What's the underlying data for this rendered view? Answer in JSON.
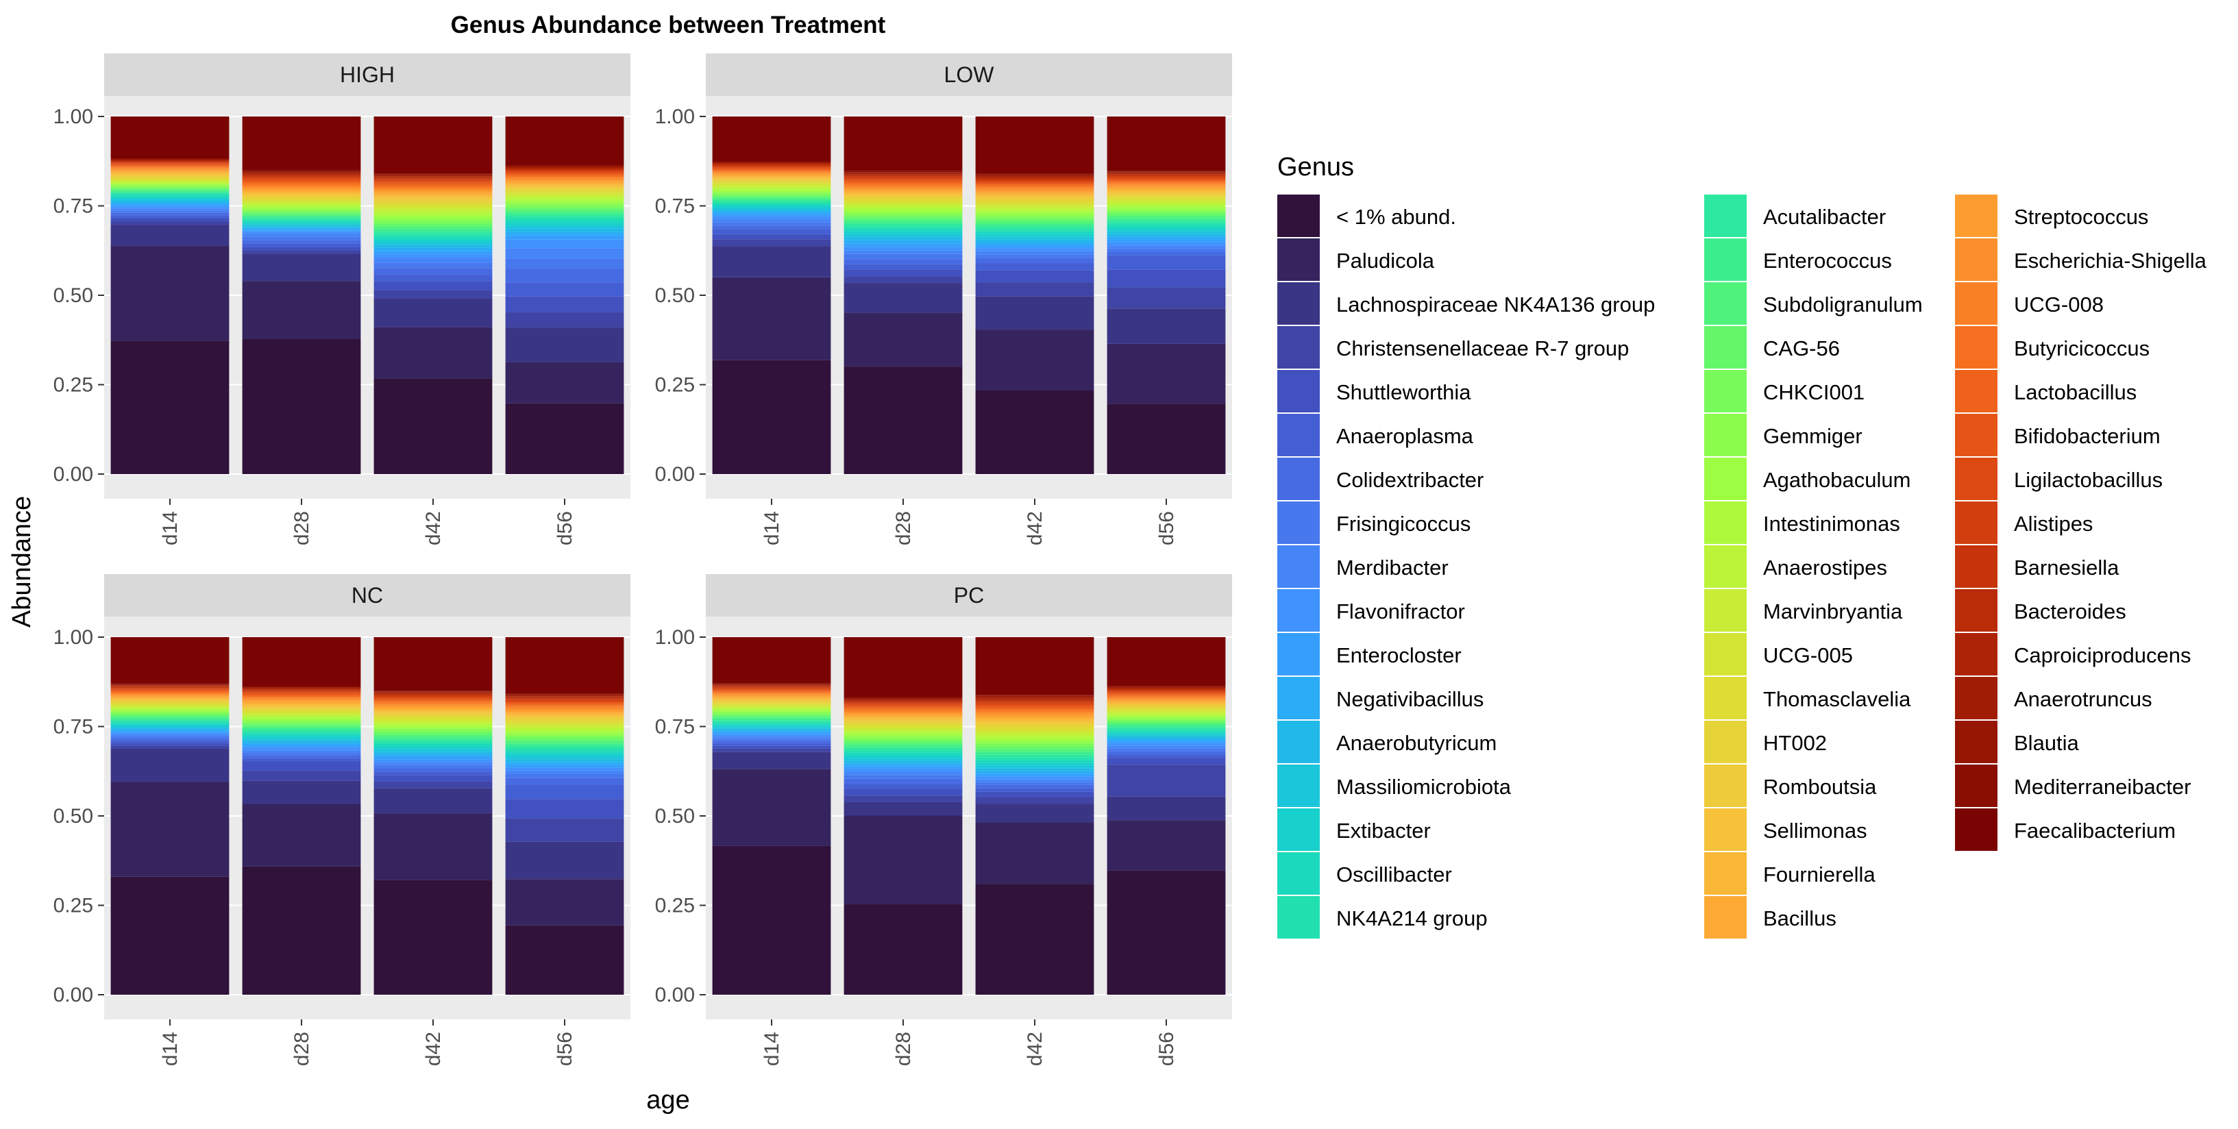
{
  "chart_data": {
    "type": "bar",
    "stacked": true,
    "title": "Genus Abundance between Treatment",
    "xlabel": "age",
    "ylabel": "Abundance",
    "ylim": [
      0,
      1
    ],
    "yticks": [
      "0.00",
      "0.25",
      "0.50",
      "0.75",
      "1.00"
    ],
    "categories": [
      "d14",
      "d28",
      "d42",
      "d56"
    ],
    "legend_title": "Genus",
    "legend_position": "right",
    "genera": [
      {
        "name": "< 1% abund.",
        "color": "#30123b"
      },
      {
        "name": "Paludicola",
        "color": "#35245e"
      },
      {
        "name": "Lachnospiraceae NK4A136 group",
        "color": "#3b3586"
      },
      {
        "name": "Christensenellaceae R-7 group",
        "color": "#3f44a5"
      },
      {
        "name": "Shuttleworthia",
        "color": "#4151bf"
      },
      {
        "name": "Anaeroplasma",
        "color": "#445ed4"
      },
      {
        "name": "Colidextribacter",
        "color": "#466be2"
      },
      {
        "name": "Frisingicoccus",
        "color": "#4778ee"
      },
      {
        "name": "Merdibacter",
        "color": "#4585f8"
      },
      {
        "name": "Flavonifractor",
        "color": "#4092fe"
      },
      {
        "name": "Enterocloster",
        "color": "#369ffe"
      },
      {
        "name": "Negativibacillus",
        "color": "#2aacf6"
      },
      {
        "name": "Anaerobutyricum",
        "color": "#21b9e8"
      },
      {
        "name": "Massiliomicrobiota",
        "color": "#1bc6da"
      },
      {
        "name": "Extibacter",
        "color": "#18d0cc"
      },
      {
        "name": "Oscillibacter",
        "color": "#1bd9bd"
      },
      {
        "name": "NK4A214 group",
        "color": "#22e0ae"
      },
      {
        "name": "Acutalibacter",
        "color": "#2de89e"
      },
      {
        "name": "Enterococcus",
        "color": "#3ced8e"
      },
      {
        "name": "Subdoligranulum",
        "color": "#4ff37c"
      },
      {
        "name": "CAG-56",
        "color": "#64f76a"
      },
      {
        "name": "CHKCI001",
        "color": "#78fa5a"
      },
      {
        "name": "Gemmiger",
        "color": "#8cfc4c"
      },
      {
        "name": "Agathobaculum",
        "color": "#9dfd42"
      },
      {
        "name": "Intestinimonas",
        "color": "#adfa3c"
      },
      {
        "name": "Anaerostipes",
        "color": "#bcf439"
      },
      {
        "name": "Marvinbryantia",
        "color": "#c9ec36"
      },
      {
        "name": "UCG-005",
        "color": "#d3e435"
      },
      {
        "name": "Thomasclavelia",
        "color": "#dedc35"
      },
      {
        "name": "HT002",
        "color": "#e6d337"
      },
      {
        "name": "Romboutsia",
        "color": "#eecb3a"
      },
      {
        "name": "Sellimonas",
        "color": "#f5c23a"
      },
      {
        "name": "Fournierella",
        "color": "#f9b738"
      },
      {
        "name": "Bacillus",
        "color": "#fcaa35"
      },
      {
        "name": "Streptococcus",
        "color": "#fd9d30"
      },
      {
        "name": "Escherichia-Shigella",
        "color": "#fc8f2b"
      },
      {
        "name": "UCG-008",
        "color": "#fa8026"
      },
      {
        "name": "Butyricicoccus",
        "color": "#f57121"
      },
      {
        "name": "Lactobacillus",
        "color": "#ee621b"
      },
      {
        "name": "Bifidobacterium",
        "color": "#e65516"
      },
      {
        "name": "Ligilactobacillus",
        "color": "#dd4912"
      },
      {
        "name": "Alistipes",
        "color": "#d23e0e"
      },
      {
        "name": "Barnesiella",
        "color": "#c6340b"
      },
      {
        "name": "Bacteroides",
        "color": "#ba2b08"
      },
      {
        "name": "Caproiciproducens",
        "color": "#ad2306"
      },
      {
        "name": "Anaerotruncus",
        "color": "#a11c04"
      },
      {
        "name": "Blautia",
        "color": "#961503"
      },
      {
        "name": "Mediterraneibacter",
        "color": "#8a0f02"
      },
      {
        "name": "Faecalibacterium",
        "color": "#7a0403"
      }
    ],
    "panels": [
      {
        "name": "HIGH",
        "bars": {
          "d14": [
            0.383,
            0.272,
            0.061,
            0.01,
            0.01,
            0.007,
            0.007,
            0.006,
            0.006,
            0.006,
            0.006,
            0.006,
            0.005,
            0.005,
            0.005,
            0.005,
            0.005,
            0.004,
            0.004,
            0.004,
            0.004,
            0.004,
            0.004,
            0.003,
            0.003,
            0.003,
            0.004,
            0.004,
            0.004,
            0.004,
            0.004,
            0.004,
            0.004,
            0.004,
            0.004,
            0.004,
            0.003,
            0.003,
            0.003,
            0.003,
            0.003,
            0.002,
            0.002,
            0.002,
            0.002,
            0.002,
            0.002,
            0.002,
            0.12
          ],
          "d28": [
            0.393,
            0.168,
            0.079,
            0.01,
            0.01,
            0.01,
            0.01,
            0.01,
            0.01,
            0.005,
            0.005,
            0.005,
            0.005,
            0.005,
            0.005,
            0.005,
            0.005,
            0.005,
            0.005,
            0.005,
            0.005,
            0.005,
            0.005,
            0.005,
            0.005,
            0.005,
            0.005,
            0.005,
            0.005,
            0.005,
            0.005,
            0.005,
            0.005,
            0.005,
            0.005,
            0.005,
            0.005,
            0.005,
            0.005,
            0.005,
            0.004,
            0.004,
            0.004,
            0.003,
            0.003,
            0.003,
            0.003,
            0.003,
            0.157
          ],
          "d42": [
            0.285,
            0.152,
            0.086,
            0.025,
            0.025,
            0.02,
            0.02,
            0.015,
            0.015,
            0.01,
            0.01,
            0.01,
            0.008,
            0.008,
            0.008,
            0.008,
            0.008,
            0.008,
            0.008,
            0.008,
            0.008,
            0.008,
            0.008,
            0.008,
            0.008,
            0.008,
            0.007,
            0.007,
            0.007,
            0.007,
            0.006,
            0.006,
            0.006,
            0.006,
            0.006,
            0.005,
            0.005,
            0.005,
            0.005,
            0.005,
            0.004,
            0.004,
            0.004,
            0.003,
            0.003,
            0.003,
            0.003,
            0.002,
            0.17
          ],
          "d56": [
            0.205,
            0.12,
            0.1,
            0.045,
            0.045,
            0.04,
            0.04,
            0.03,
            0.03,
            0.025,
            0.012,
            0.01,
            0.01,
            0.008,
            0.008,
            0.008,
            0.008,
            0.007,
            0.007,
            0.007,
            0.007,
            0.007,
            0.007,
            0.006,
            0.006,
            0.006,
            0.006,
            0.006,
            0.006,
            0.005,
            0.005,
            0.005,
            0.005,
            0.005,
            0.005,
            0.005,
            0.004,
            0.004,
            0.004,
            0.004,
            0.004,
            0.003,
            0.003,
            0.003,
            0.003,
            0.002,
            0.002,
            0.002,
            0.142
          ]
        }
      },
      {
        "name": "LOW",
        "bars": {
          "d14": [
            0.33,
            0.24,
            0.09,
            0.02,
            0.015,
            0.015,
            0.01,
            0.01,
            0.01,
            0.008,
            0.006,
            0.006,
            0.006,
            0.006,
            0.005,
            0.005,
            0.005,
            0.005,
            0.005,
            0.005,
            0.005,
            0.005,
            0.005,
            0.005,
            0.005,
            0.005,
            0.005,
            0.005,
            0.004,
            0.004,
            0.004,
            0.004,
            0.004,
            0.004,
            0.004,
            0.004,
            0.003,
            0.003,
            0.003,
            0.003,
            0.003,
            0.003,
            0.003,
            0.003,
            0.002,
            0.002,
            0.002,
            0.002,
            0.13
          ],
          "d28": [
            0.315,
            0.158,
            0.087,
            0.02,
            0.02,
            0.015,
            0.015,
            0.015,
            0.01,
            0.01,
            0.01,
            0.01,
            0.01,
            0.008,
            0.008,
            0.008,
            0.007,
            0.007,
            0.007,
            0.007,
            0.007,
            0.007,
            0.007,
            0.006,
            0.006,
            0.006,
            0.006,
            0.006,
            0.006,
            0.006,
            0.006,
            0.005,
            0.005,
            0.005,
            0.005,
            0.005,
            0.005,
            0.005,
            0.005,
            0.005,
            0.004,
            0.004,
            0.004,
            0.003,
            0.003,
            0.003,
            0.003,
            0.003,
            0.16
          ],
          "d42": [
            0.24,
            0.175,
            0.095,
            0.04,
            0.035,
            0.02,
            0.015,
            0.01,
            0.01,
            0.009,
            0.009,
            0.008,
            0.008,
            0.008,
            0.008,
            0.007,
            0.007,
            0.007,
            0.007,
            0.007,
            0.007,
            0.007,
            0.007,
            0.006,
            0.006,
            0.006,
            0.006,
            0.006,
            0.006,
            0.006,
            0.006,
            0.005,
            0.005,
            0.005,
            0.005,
            0.005,
            0.005,
            0.005,
            0.004,
            0.004,
            0.004,
            0.004,
            0.003,
            0.003,
            0.003,
            0.003,
            0.003,
            0.002,
            0.165
          ],
          "d56": [
            0.2,
            0.17,
            0.1,
            0.06,
            0.05,
            0.04,
            0.01,
            0.01,
            0.009,
            0.009,
            0.008,
            0.008,
            0.008,
            0.008,
            0.008,
            0.007,
            0.007,
            0.007,
            0.007,
            0.007,
            0.007,
            0.006,
            0.006,
            0.006,
            0.006,
            0.006,
            0.006,
            0.006,
            0.005,
            0.005,
            0.005,
            0.005,
            0.005,
            0.005,
            0.005,
            0.005,
            0.004,
            0.004,
            0.004,
            0.004,
            0.004,
            0.003,
            0.003,
            0.003,
            0.003,
            0.002,
            0.002,
            0.002,
            0.155
          ]
        }
      },
      {
        "name": "NC",
        "bars": {
          "d14": [
            0.355,
            0.285,
            0.1,
            0.01,
            0.008,
            0.007,
            0.006,
            0.006,
            0.006,
            0.005,
            0.005,
            0.005,
            0.005,
            0.005,
            0.005,
            0.005,
            0.005,
            0.005,
            0.005,
            0.005,
            0.005,
            0.005,
            0.005,
            0.004,
            0.004,
            0.004,
            0.004,
            0.004,
            0.004,
            0.004,
            0.004,
            0.004,
            0.004,
            0.004,
            0.004,
            0.004,
            0.003,
            0.003,
            0.003,
            0.003,
            0.003,
            0.003,
            0.003,
            0.002,
            0.002,
            0.002,
            0.002,
            0.002,
            0.14
          ],
          "d28": [
            0.39,
            0.19,
            0.07,
            0.03,
            0.03,
            0.01,
            0.008,
            0.008,
            0.008,
            0.008,
            0.007,
            0.007,
            0.007,
            0.007,
            0.007,
            0.006,
            0.006,
            0.006,
            0.006,
            0.006,
            0.006,
            0.006,
            0.006,
            0.005,
            0.005,
            0.005,
            0.005,
            0.005,
            0.005,
            0.005,
            0.005,
            0.005,
            0.005,
            0.005,
            0.005,
            0.005,
            0.004,
            0.004,
            0.004,
            0.004,
            0.003,
            0.003,
            0.003,
            0.003,
            0.003,
            0.002,
            0.002,
            0.002,
            0.15
          ],
          "d42": [
            0.345,
            0.2,
            0.075,
            0.02,
            0.02,
            0.01,
            0.01,
            0.01,
            0.008,
            0.008,
            0.008,
            0.008,
            0.008,
            0.008,
            0.007,
            0.007,
            0.007,
            0.007,
            0.007,
            0.007,
            0.007,
            0.007,
            0.006,
            0.006,
            0.006,
            0.006,
            0.006,
            0.006,
            0.006,
            0.006,
            0.005,
            0.005,
            0.005,
            0.005,
            0.005,
            0.005,
            0.005,
            0.004,
            0.004,
            0.004,
            0.004,
            0.004,
            0.003,
            0.003,
            0.003,
            0.003,
            0.002,
            0.002,
            0.161
          ],
          "d56": [
            0.195,
            0.13,
            0.105,
            0.065,
            0.055,
            0.04,
            0.02,
            0.01,
            0.01,
            0.008,
            0.008,
            0.008,
            0.008,
            0.008,
            0.008,
            0.007,
            0.007,
            0.007,
            0.007,
            0.007,
            0.007,
            0.007,
            0.006,
            0.006,
            0.006,
            0.006,
            0.006,
            0.006,
            0.006,
            0.006,
            0.005,
            0.005,
            0.005,
            0.005,
            0.005,
            0.005,
            0.005,
            0.004,
            0.004,
            0.004,
            0.004,
            0.004,
            0.003,
            0.003,
            0.003,
            0.003,
            0.002,
            0.002,
            0.159
          ]
        }
      },
      {
        "name": "PC",
        "bars": {
          "d14": [
            0.435,
            0.225,
            0.05,
            0.01,
            0.008,
            0.008,
            0.008,
            0.006,
            0.006,
            0.006,
            0.006,
            0.005,
            0.005,
            0.005,
            0.005,
            0.005,
            0.005,
            0.005,
            0.005,
            0.005,
            0.005,
            0.005,
            0.005,
            0.004,
            0.004,
            0.004,
            0.004,
            0.004,
            0.004,
            0.004,
            0.004,
            0.004,
            0.004,
            0.004,
            0.004,
            0.004,
            0.003,
            0.003,
            0.003,
            0.003,
            0.003,
            0.003,
            0.003,
            0.002,
            0.002,
            0.002,
            0.002,
            0.002,
            0.135
          ],
          "d28": [
            0.27,
            0.265,
            0.04,
            0.02,
            0.02,
            0.015,
            0.015,
            0.01,
            0.01,
            0.01,
            0.008,
            0.008,
            0.008,
            0.008,
            0.008,
            0.008,
            0.007,
            0.007,
            0.007,
            0.007,
            0.007,
            0.007,
            0.007,
            0.006,
            0.006,
            0.006,
            0.006,
            0.006,
            0.006,
            0.006,
            0.006,
            0.005,
            0.005,
            0.005,
            0.005,
            0.005,
            0.005,
            0.005,
            0.004,
            0.004,
            0.004,
            0.004,
            0.003,
            0.003,
            0.003,
            0.003,
            0.003,
            0.002,
            0.18
          ],
          "d42": [
            0.325,
            0.18,
            0.055,
            0.02,
            0.015,
            0.01,
            0.01,
            0.008,
            0.008,
            0.008,
            0.008,
            0.008,
            0.008,
            0.008,
            0.008,
            0.008,
            0.008,
            0.008,
            0.008,
            0.008,
            0.008,
            0.008,
            0.007,
            0.007,
            0.007,
            0.007,
            0.007,
            0.007,
            0.007,
            0.007,
            0.006,
            0.006,
            0.006,
            0.006,
            0.006,
            0.006,
            0.005,
            0.005,
            0.005,
            0.005,
            0.005,
            0.005,
            0.004,
            0.004,
            0.004,
            0.004,
            0.003,
            0.003,
            0.169
          ],
          "d56": [
            0.37,
            0.15,
            0.07,
            0.095,
            0.02,
            0.01,
            0.01,
            0.008,
            0.008,
            0.008,
            0.006,
            0.006,
            0.006,
            0.006,
            0.006,
            0.006,
            0.006,
            0.006,
            0.006,
            0.006,
            0.005,
            0.005,
            0.005,
            0.005,
            0.005,
            0.005,
            0.005,
            0.005,
            0.005,
            0.005,
            0.004,
            0.004,
            0.004,
            0.004,
            0.004,
            0.004,
            0.004,
            0.004,
            0.004,
            0.004,
            0.003,
            0.003,
            0.003,
            0.003,
            0.003,
            0.002,
            0.002,
            0.002,
            0.145
          ]
        }
      }
    ]
  }
}
